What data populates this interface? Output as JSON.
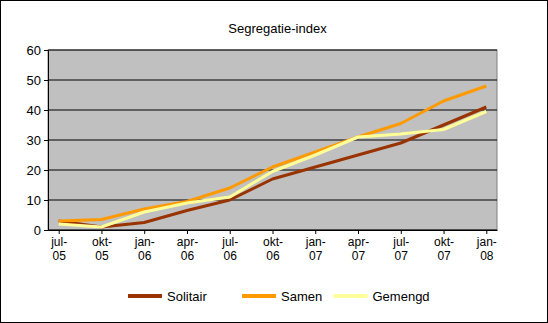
{
  "chart_data": {
    "type": "line",
    "title": "Segregatie-index",
    "categories": [
      "jul-05",
      "okt-05",
      "jan-06",
      "apr-06",
      "jul-06",
      "okt-06",
      "jan-07",
      "apr-07",
      "jul-07",
      "okt-07",
      "jan-08"
    ],
    "series": [
      {
        "name": "Solitair",
        "color": "#993300",
        "values": [
          3,
          1,
          2.5,
          6.5,
          10,
          17,
          21,
          25,
          29,
          35,
          41
        ]
      },
      {
        "name": "Samen",
        "color": "#FF9900",
        "values": [
          3,
          3.5,
          7,
          9.5,
          14,
          21,
          26,
          31,
          35.5,
          43,
          48
        ]
      },
      {
        "name": "Gemengd",
        "color": "#FFFF99",
        "values": [
          2,
          1,
          6,
          9,
          11,
          19.5,
          25,
          31,
          32,
          33.5,
          39.5
        ]
      }
    ],
    "ylim": [
      0,
      60
    ],
    "yticks": [
      0,
      10,
      20,
      30,
      40,
      50,
      60
    ],
    "grid": true,
    "legend": "bottom"
  }
}
